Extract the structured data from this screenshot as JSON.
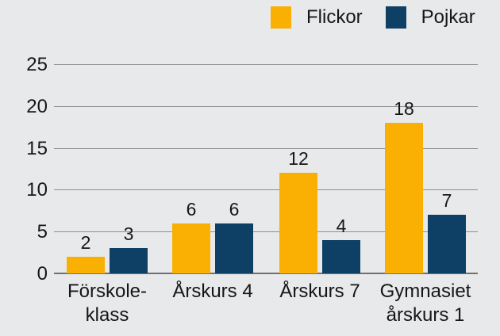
{
  "colors": {
    "background": "#E8E9EA",
    "flickor": "#F9B003",
    "pojkar": "#0E4066",
    "gridline": "#8F8F8F",
    "axis": "#707070",
    "text": "#161616"
  },
  "legend": [
    {
      "label": "Flickor",
      "color": "#F9B003"
    },
    {
      "label": "Pojkar",
      "color": "#0E4066"
    }
  ],
  "chart_data": {
    "type": "bar",
    "categories": [
      [
        "Förskole-",
        "klass"
      ],
      [
        "Årskurs 4"
      ],
      [
        "Årskurs 7"
      ],
      [
        "Gymnasiet",
        "årskurs 1"
      ]
    ],
    "series": [
      {
        "name": "Flickor",
        "color": "#F9B003",
        "values": [
          2,
          6,
          12,
          18
        ]
      },
      {
        "name": "Pojkar",
        "color": "#0E4066",
        "values": [
          3,
          6,
          4,
          7
        ]
      }
    ],
    "title": "",
    "xlabel": "",
    "ylabel": "",
    "ylim": [
      0,
      25
    ],
    "yticks": [
      0,
      5,
      10,
      15,
      20,
      25
    ],
    "grid": true,
    "legend_position": "top-right",
    "value_labels": true
  }
}
